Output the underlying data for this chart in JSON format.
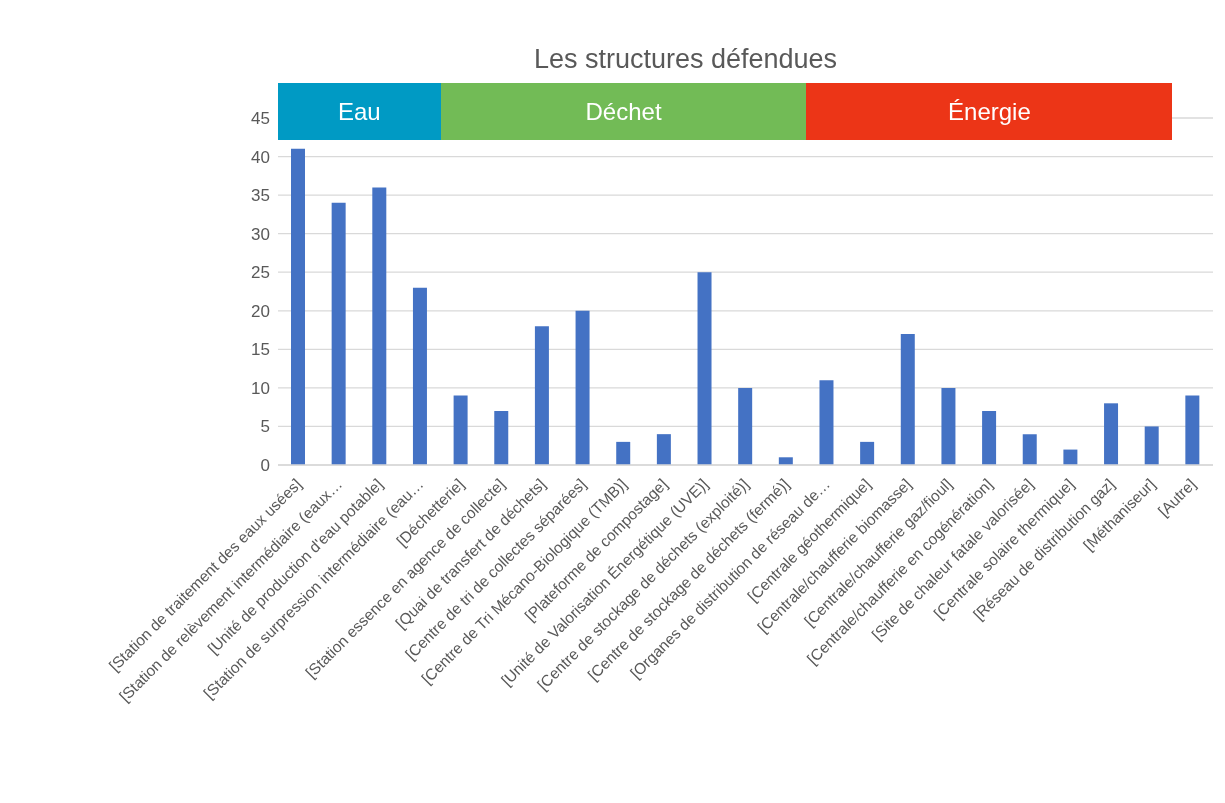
{
  "chart_data": {
    "type": "bar",
    "title": "Les structures défendues",
    "categories": [
      "[Station de traitement des eaux usées]",
      "[Station de relèvement intermédiaire (eaux…",
      "[Unité de production d'eau potable]",
      "[Station de surpression intermédiaire (eau…",
      "[Déchetterie]",
      "[Station essence en agence de collecte]",
      "[Quai de transfert de déchets]",
      "[Centre de tri de collectes séparées]",
      "[Centre de Tri Mécano-Biologique (TMB)]",
      "[Plateforme de compostage]",
      "[Unité de Valorisation Énergétique (UVE)]",
      "[Centre de stockage de déchets (exploité)]",
      "[Centre de stockage de déchets (fermé)]",
      "[Organes de distribution de réseau de…",
      "[Centrale géothermique]",
      "[Centrale/chaufferie biomasse]",
      "[Centrale/chaufferie gaz/fioul]",
      "[Centrale/chaufferie en cogénération]",
      "[Site de chaleur fatale valorisée]",
      "[Centrale solaire thermique]",
      "[Réseau de distribution gaz]",
      "[Méthaniseur]",
      "[Autre]"
    ],
    "values": [
      41,
      34,
      36,
      23,
      9,
      7,
      18,
      20,
      3,
      4,
      25,
      10,
      1,
      11,
      3,
      17,
      10,
      7,
      4,
      2,
      8,
      5,
      9
    ],
    "color": "#4472c4",
    "ylim": [
      0,
      45
    ],
    "yticks": [
      0,
      5,
      10,
      15,
      20,
      25,
      30,
      35,
      40,
      45
    ],
    "grid": "y",
    "bands": [
      {
        "axis": "x",
        "from": "[Station de traitement des eaux usées]",
        "to": "[Station de surpression intermédiaire (eau…",
        "label": "Eau",
        "color": "#009ac4"
      },
      {
        "axis": "x",
        "from": "[Déchetterie]",
        "to": "[Centre de stockage de déchets (fermé)]",
        "label": "Déchet",
        "color": "#72bb56"
      },
      {
        "axis": "x",
        "from": "[Organes de distribution de réseau de…",
        "to": "[Méthaniseur]",
        "label": "Énergie",
        "color": "#ec3517"
      }
    ]
  }
}
